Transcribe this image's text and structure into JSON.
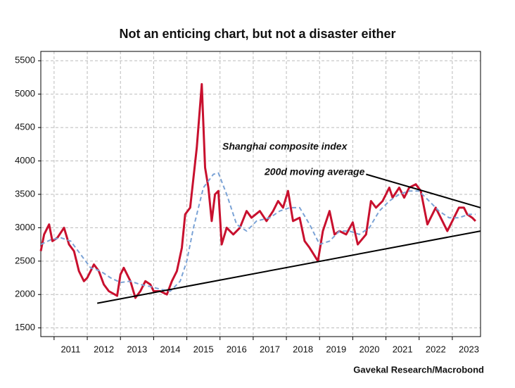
{
  "chart_data": {
    "type": "line",
    "title": "Not an enticing chart, but not a disaster either",
    "source": "Gavekal Research/Macrobond",
    "annotations": [
      "Shanghai composite index",
      "200d moving average"
    ],
    "xlim": [
      2010.6,
      2023.85
    ],
    "ylim": [
      1370,
      5640
    ],
    "yticks": [
      1500,
      2000,
      2500,
      3000,
      3500,
      4000,
      4500,
      5000,
      5500
    ],
    "xgrid": [
      2011,
      2012,
      2013,
      2014,
      2015,
      2016,
      2017,
      2018,
      2019,
      2020,
      2021,
      2022,
      2023
    ],
    "xticks": [
      {
        "value": 2011.5,
        "label": "2011"
      },
      {
        "value": 2012.5,
        "label": "2012"
      },
      {
        "value": 2013.5,
        "label": "2013"
      },
      {
        "value": 2014.5,
        "label": "2014"
      },
      {
        "value": 2015.5,
        "label": "2015"
      },
      {
        "value": 2016.5,
        "label": "2016"
      },
      {
        "value": 2017.5,
        "label": "2017"
      },
      {
        "value": 2018.5,
        "label": "2018"
      },
      {
        "value": 2019.5,
        "label": "2019"
      },
      {
        "value": 2020.5,
        "label": "2020"
      },
      {
        "value": 2021.5,
        "label": "2021"
      },
      {
        "value": 2022.5,
        "label": "2022"
      },
      {
        "value": 2023.5,
        "label": "2023"
      }
    ],
    "grid": true,
    "series": [
      {
        "name": "Shanghai composite index",
        "color": "#c8102e",
        "dash": false,
        "x": [
          2010.6,
          2010.7,
          2010.85,
          2010.95,
          2011.1,
          2011.3,
          2011.45,
          2011.6,
          2011.75,
          2011.9,
          2012.0,
          2012.2,
          2012.35,
          2012.5,
          2012.65,
          2012.9,
          2013.0,
          2013.1,
          2013.3,
          2013.45,
          2013.6,
          2013.75,
          2013.9,
          2014.0,
          2014.2,
          2014.4,
          2014.55,
          2014.7,
          2014.85,
          2014.95,
          2015.1,
          2015.3,
          2015.45,
          2015.55,
          2015.65,
          2015.75,
          2015.85,
          2015.95,
          2016.05,
          2016.2,
          2016.4,
          2016.6,
          2016.8,
          2016.95,
          2017.2,
          2017.4,
          2017.6,
          2017.75,
          2017.9,
          2018.05,
          2018.2,
          2018.4,
          2018.55,
          2018.7,
          2018.95,
          2019.1,
          2019.3,
          2019.45,
          2019.6,
          2019.8,
          2020.0,
          2020.15,
          2020.4,
          2020.55,
          2020.7,
          2020.9,
          2021.1,
          2021.2,
          2021.4,
          2021.55,
          2021.7,
          2021.9,
          2022.05,
          2022.25,
          2022.35,
          2022.5,
          2022.7,
          2022.85,
          2023.0,
          2023.2,
          2023.35,
          2023.45,
          2023.6,
          2023.7
        ],
        "values": [
          2650,
          2900,
          3050,
          2800,
          2850,
          3000,
          2750,
          2650,
          2350,
          2200,
          2250,
          2450,
          2350,
          2150,
          2050,
          1980,
          2300,
          2400,
          2200,
          1950,
          2050,
          2200,
          2150,
          2050,
          2050,
          2000,
          2200,
          2350,
          2700,
          3200,
          3300,
          4200,
          5150,
          3900,
          3600,
          3100,
          3500,
          3550,
          2750,
          3000,
          2900,
          3000,
          3250,
          3150,
          3250,
          3100,
          3250,
          3400,
          3300,
          3550,
          3100,
          3150,
          2800,
          2700,
          2500,
          2950,
          3250,
          2900,
          2950,
          2900,
          3080,
          2750,
          2900,
          3400,
          3300,
          3400,
          3600,
          3450,
          3600,
          3450,
          3600,
          3650,
          3550,
          3050,
          3150,
          3300,
          3100,
          2950,
          3100,
          3300,
          3300,
          3200,
          3150,
          3100
        ]
      },
      {
        "name": "200d moving average",
        "color": "#7ba3d6",
        "dash": true,
        "x": [
          2010.6,
          2010.9,
          2011.2,
          2011.5,
          2011.8,
          2012.1,
          2012.4,
          2012.7,
          2013.0,
          2013.3,
          2013.6,
          2013.9,
          2014.2,
          2014.5,
          2014.8,
          2015.0,
          2015.2,
          2015.5,
          2015.8,
          2015.95,
          2016.2,
          2016.5,
          2016.8,
          2017.1,
          2017.5,
          2017.8,
          2018.1,
          2018.4,
          2018.7,
          2019.0,
          2019.3,
          2019.6,
          2019.9,
          2020.2,
          2020.5,
          2020.8,
          2021.1,
          2021.4,
          2021.7,
          2022.0,
          2022.3,
          2022.6,
          2022.9,
          2023.2,
          2023.5,
          2023.7
        ],
        "values": [
          2750,
          2820,
          2850,
          2800,
          2600,
          2400,
          2350,
          2250,
          2180,
          2200,
          2150,
          2120,
          2080,
          2050,
          2200,
          2500,
          3000,
          3600,
          3800,
          3820,
          3500,
          3050,
          2950,
          3100,
          3150,
          3250,
          3300,
          3300,
          3050,
          2750,
          2800,
          2950,
          2950,
          2900,
          3000,
          3250,
          3400,
          3500,
          3550,
          3550,
          3400,
          3250,
          3150,
          3150,
          3200,
          3200
        ]
      }
    ],
    "trend_lines": [
      {
        "x": [
          2012.3,
          2023.85
        ],
        "values": [
          1870,
          2950
        ]
      },
      {
        "x": [
          2020.4,
          2023.85
        ],
        "values": [
          3800,
          3300
        ]
      }
    ]
  }
}
